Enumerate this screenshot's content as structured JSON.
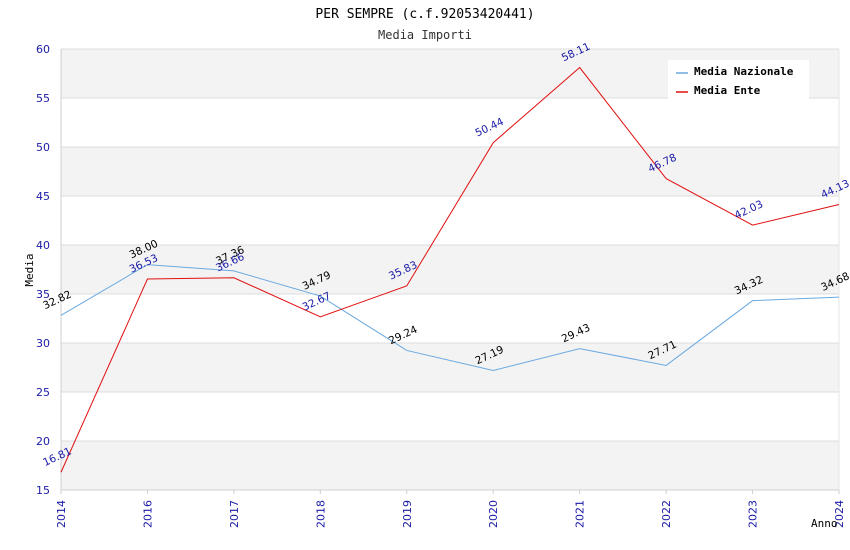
{
  "chart_data": {
    "type": "line",
    "title": "PER SEMPRE (c.f.92053420441)",
    "subtitle": "Media Importi",
    "xlabel": "Anno",
    "ylabel": "Media",
    "categories": [
      "2014",
      "2016",
      "2017",
      "2018",
      "2019",
      "2020",
      "2021",
      "2022",
      "2023",
      "2024"
    ],
    "ylim": [
      15,
      60
    ],
    "yticks": [
      15,
      20,
      25,
      30,
      35,
      40,
      45,
      50,
      55,
      60
    ],
    "grid": "horizontal",
    "legend_position": "top-right",
    "series": [
      {
        "name": "Media Nazionale",
        "color": "#6aa9e0",
        "values": [
          32.82,
          38.0,
          37.36,
          34.79,
          29.24,
          27.19,
          29.43,
          27.71,
          34.32,
          34.68
        ],
        "labels": [
          "32.82",
          "38.00",
          "37.36",
          "34.79",
          "29.24",
          "27.19",
          "29.43",
          "27.71",
          "34.32",
          "34.68"
        ]
      },
      {
        "name": "Media Ente",
        "color": "#e01010",
        "values": [
          16.81,
          36.53,
          36.66,
          32.67,
          35.83,
          50.44,
          58.11,
          46.78,
          42.03,
          44.13
        ],
        "labels": [
          "16.81",
          "36.53",
          "36.66",
          "32.67",
          "35.83",
          "50.44",
          "58.11",
          "46.78",
          "42.03",
          "44.13"
        ]
      }
    ]
  }
}
